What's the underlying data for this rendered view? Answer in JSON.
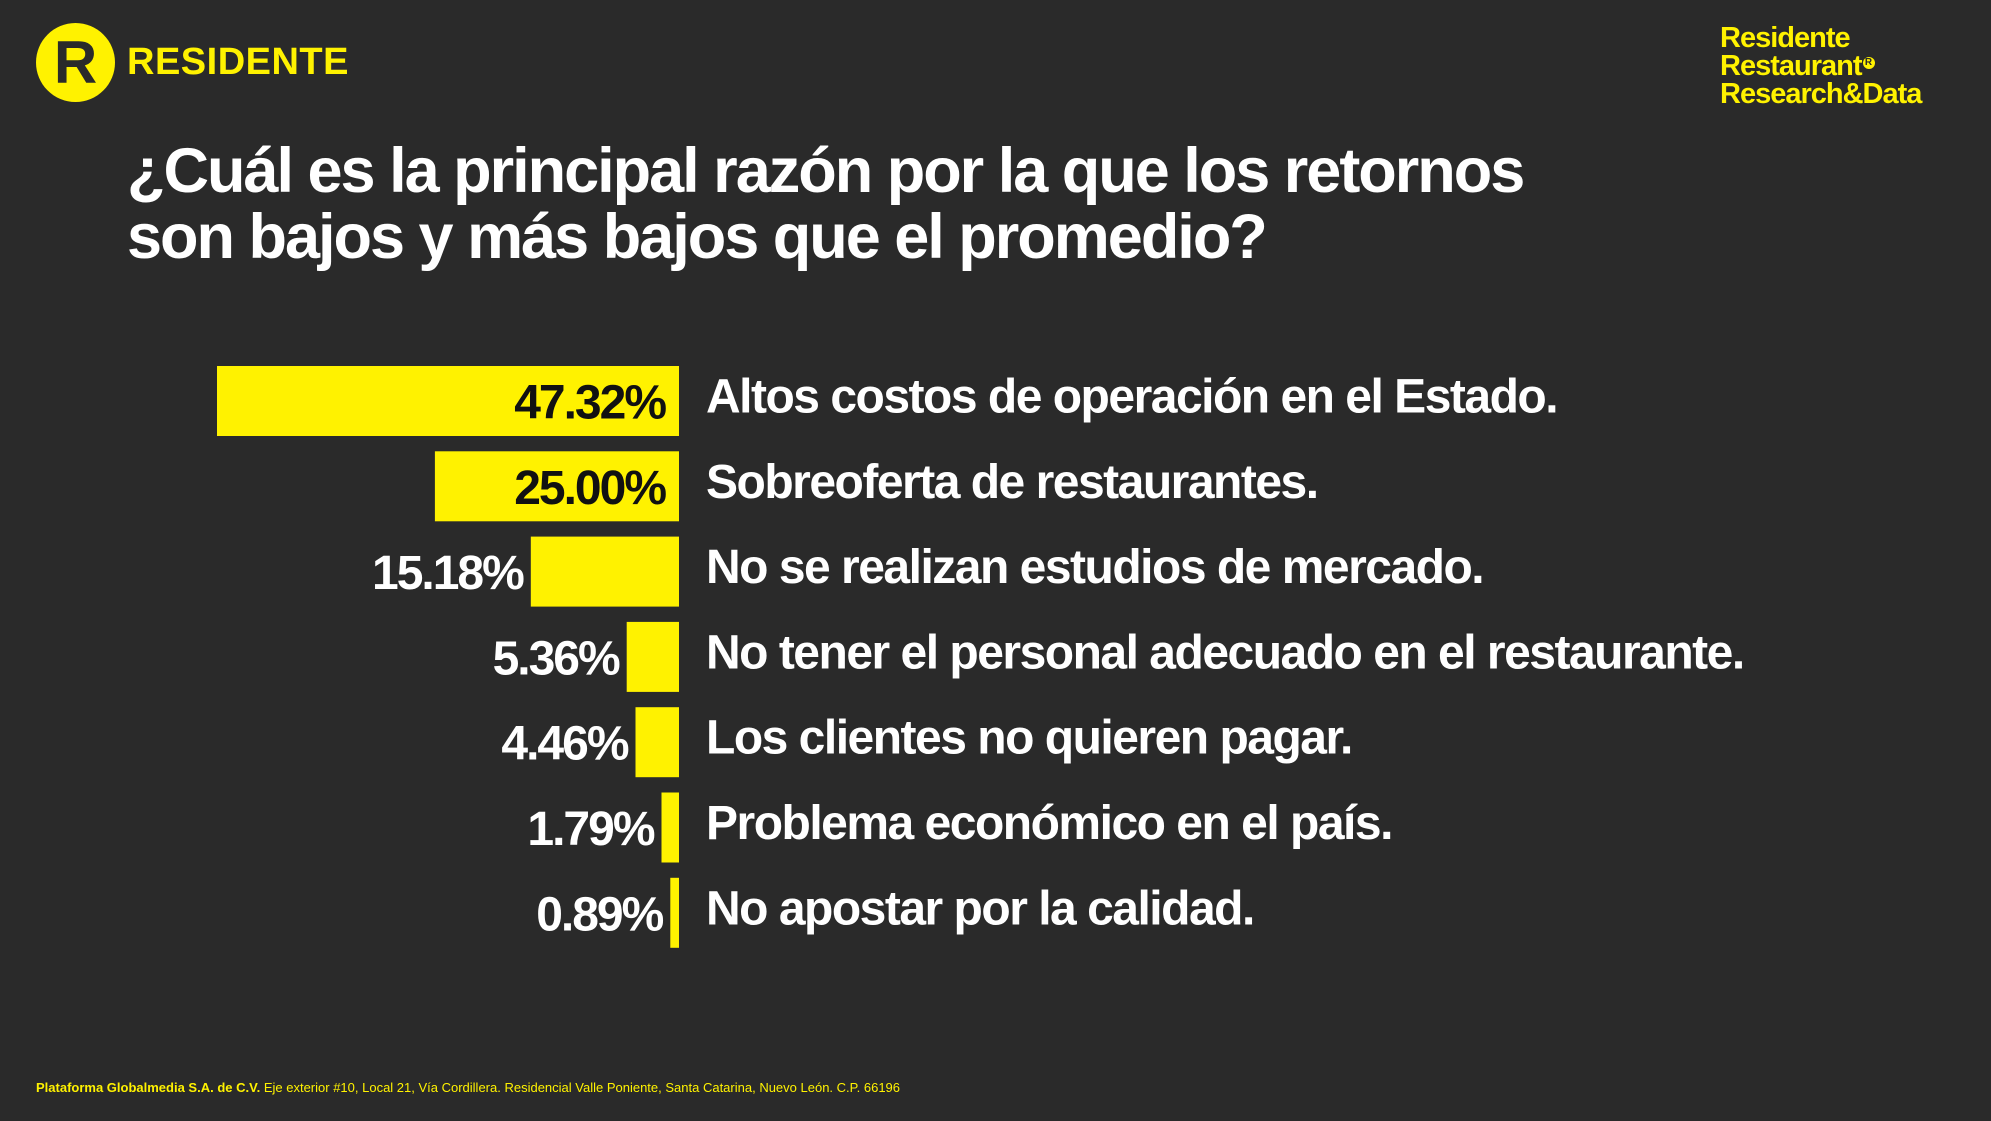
{
  "header": {
    "logo_letter": "R",
    "logo_text": "RESIDENTE",
    "brand_lines": [
      "Residente",
      "Restaurant",
      "Research&Data"
    ],
    "brand_reg_mark": "R"
  },
  "title_lines": [
    "¿Cuál es la principal razón por la que los retornos",
    "son bajos y más bajos que el promedio?"
  ],
  "colors": {
    "background": "#2a2a2a",
    "bar": "#fff200",
    "text": "#ffffff",
    "label_on_bar": "#111111"
  },
  "chart_data": {
    "type": "bar",
    "orientation": "horizontal",
    "categories": [
      "Altos costos de operación en el Estado.",
      "Sobreoferta de restaurantes.",
      "No se realizan estudios de mercado.",
      "No tener el personal adecuado en el restaurante.",
      "Los clientes no quieren pagar.",
      "Problema económico en el país.",
      "No apostar por la calidad."
    ],
    "values": [
      47.32,
      25.0,
      15.18,
      5.36,
      4.46,
      1.79,
      0.89
    ],
    "value_labels": [
      "47.32%",
      "25.00%",
      "15.18%",
      "5.36%",
      "4.46%",
      "1.79%",
      "0.89%"
    ],
    "unit": "%",
    "title": "¿Cuál es la principal razón por la que los retornos son bajos y más bajos que el promedio?",
    "xlabel": "",
    "ylabel": "",
    "xlim": [
      0,
      47.32
    ],
    "grid": false,
    "legend": "none"
  },
  "footer": {
    "company": "Plataforma Globalmedia S.A. de C.V.",
    "address": "Eje exterior #10, Local 21, Vía Cordillera. Residencial Valle Poniente, Santa Catarina, Nuevo León. C.P. 66196"
  }
}
